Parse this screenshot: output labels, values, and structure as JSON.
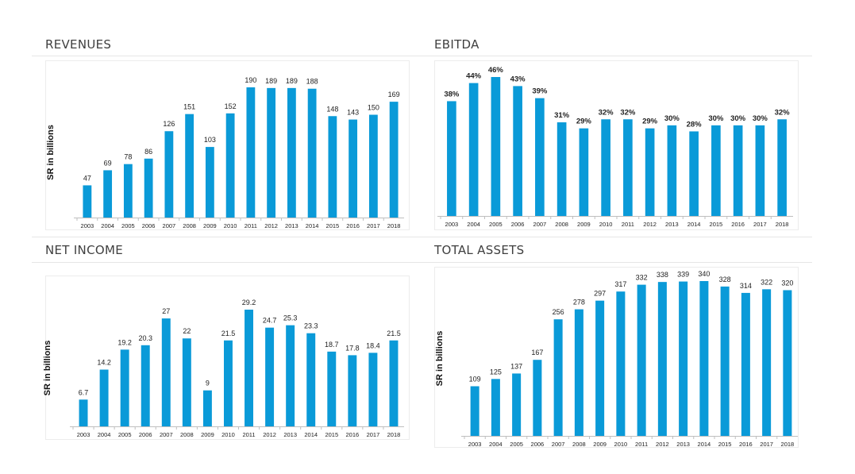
{
  "chart_data": [
    {
      "id": "revenues",
      "type": "bar",
      "title": "REVENUES",
      "ylabel": "SR in billions",
      "categories": [
        "2003",
        "2004",
        "2005",
        "2006",
        "2007",
        "2008",
        "2009",
        "2010",
        "2011",
        "2012",
        "2013",
        "2014",
        "2015",
        "2016",
        "2017",
        "2018"
      ],
      "values": [
        47,
        69,
        78,
        86,
        126,
        151,
        103,
        152,
        190,
        189,
        189,
        188,
        148,
        143,
        150,
        169
      ],
      "value_labels": [
        "47",
        "69",
        "78",
        "86",
        "126",
        "151",
        "103",
        "152",
        "190",
        "189",
        "189",
        "188",
        "148",
        "143",
        "150",
        "169"
      ],
      "ylim": [
        0,
        190
      ],
      "color": "#0a9ad8",
      "grid": false
    },
    {
      "id": "ebitda",
      "type": "bar",
      "title": "EBITDA",
      "ylabel": "",
      "categories": [
        "2003",
        "2004",
        "2005",
        "2006",
        "2007",
        "2008",
        "2009",
        "2010",
        "2011",
        "2012",
        "2013",
        "2014",
        "2015",
        "2016",
        "2017",
        "2018"
      ],
      "values": [
        38,
        44,
        46,
        43,
        39,
        31,
        29,
        32,
        32,
        29,
        30,
        28,
        30,
        30,
        30,
        32
      ],
      "value_labels": [
        "38%",
        "44%",
        "46%",
        "43%",
        "39%",
        "31%",
        "29%",
        "32%",
        "32%",
        "29%",
        "30%",
        "28%",
        "30%",
        "30%",
        "30%",
        "32%"
      ],
      "ylim": [
        0,
        46
      ],
      "color": "#0a9ad8",
      "grid": false
    },
    {
      "id": "net-income",
      "type": "bar",
      "title": "NET INCOME",
      "ylabel": "SR in billions",
      "categories": [
        "2003",
        "2004",
        "2005",
        "2006",
        "2007",
        "2008",
        "2009",
        "2010",
        "2011",
        "2012",
        "2013",
        "2014",
        "2015",
        "2016",
        "2017",
        "2018"
      ],
      "values": [
        6.7,
        14.2,
        19.2,
        20.3,
        27,
        22,
        9,
        21.5,
        29.2,
        24.7,
        25.3,
        23.3,
        18.7,
        17.8,
        18.4,
        21.5
      ],
      "value_labels": [
        "6.7",
        "14.2",
        "19.2",
        "20.3",
        "27",
        "22",
        "9",
        "21.5",
        "29.2",
        "24.7",
        "25.3",
        "23.3",
        "18.7",
        "17.8",
        "18.4",
        "21.5"
      ],
      "ylim": [
        0,
        29.2
      ],
      "color": "#0a9ad8",
      "grid": false
    },
    {
      "id": "total-assets",
      "type": "bar",
      "title": "TOTAL ASSETS",
      "ylabel": "SR in billions",
      "categories": [
        "2003",
        "2004",
        "2005",
        "2006",
        "2007",
        "2008",
        "2009",
        "2010",
        "2011",
        "2012",
        "2013",
        "2014",
        "2015",
        "2016",
        "2017",
        "2018"
      ],
      "values": [
        109,
        125,
        137,
        167,
        256,
        278,
        297,
        317,
        332,
        338,
        339,
        340,
        328,
        314,
        322,
        320
      ],
      "value_labels": [
        "109",
        "125",
        "137",
        "167",
        "256",
        "278",
        "297",
        "317",
        "332",
        "338",
        "339",
        "340",
        "328",
        "314",
        "322",
        "320"
      ],
      "ylim": [
        0,
        340
      ],
      "color": "#0a9ad8",
      "grid": false
    }
  ]
}
